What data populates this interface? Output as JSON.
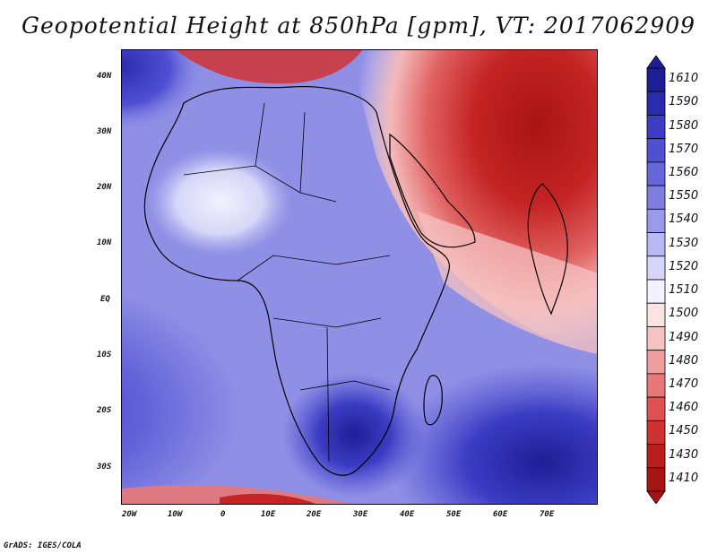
{
  "title": "Geopotential Height at 850hPa [gpm], VT: 2017062909",
  "credit": "GrADS: IGES/COLA",
  "lat_labels": [
    "40N",
    "30N",
    "20N",
    "10N",
    "EQ",
    "10S",
    "20S",
    "30S"
  ],
  "lon_labels": [
    "20W",
    "10W",
    "0",
    "10E",
    "20E",
    "30E",
    "40E",
    "50E",
    "60E",
    "70E"
  ],
  "colorbar": {
    "labels": [
      "1610",
      "1590",
      "1580",
      "1570",
      "1560",
      "1550",
      "1540",
      "1530",
      "1520",
      "1510",
      "1500",
      "1490",
      "1480",
      "1470",
      "1460",
      "1450",
      "1430",
      "1410"
    ],
    "colors": [
      "#1e1e96",
      "#2b2bae",
      "#3c3cc4",
      "#5050d2",
      "#6666da",
      "#7f7fe2",
      "#9a9aea",
      "#b8b8f2",
      "#d6d6f8",
      "#f2f2fc",
      "#fbe3e3",
      "#f6c2c2",
      "#f09e9e",
      "#e87878",
      "#de5252",
      "#d03232",
      "#bc1e1e",
      "#a81414"
    ]
  }
}
